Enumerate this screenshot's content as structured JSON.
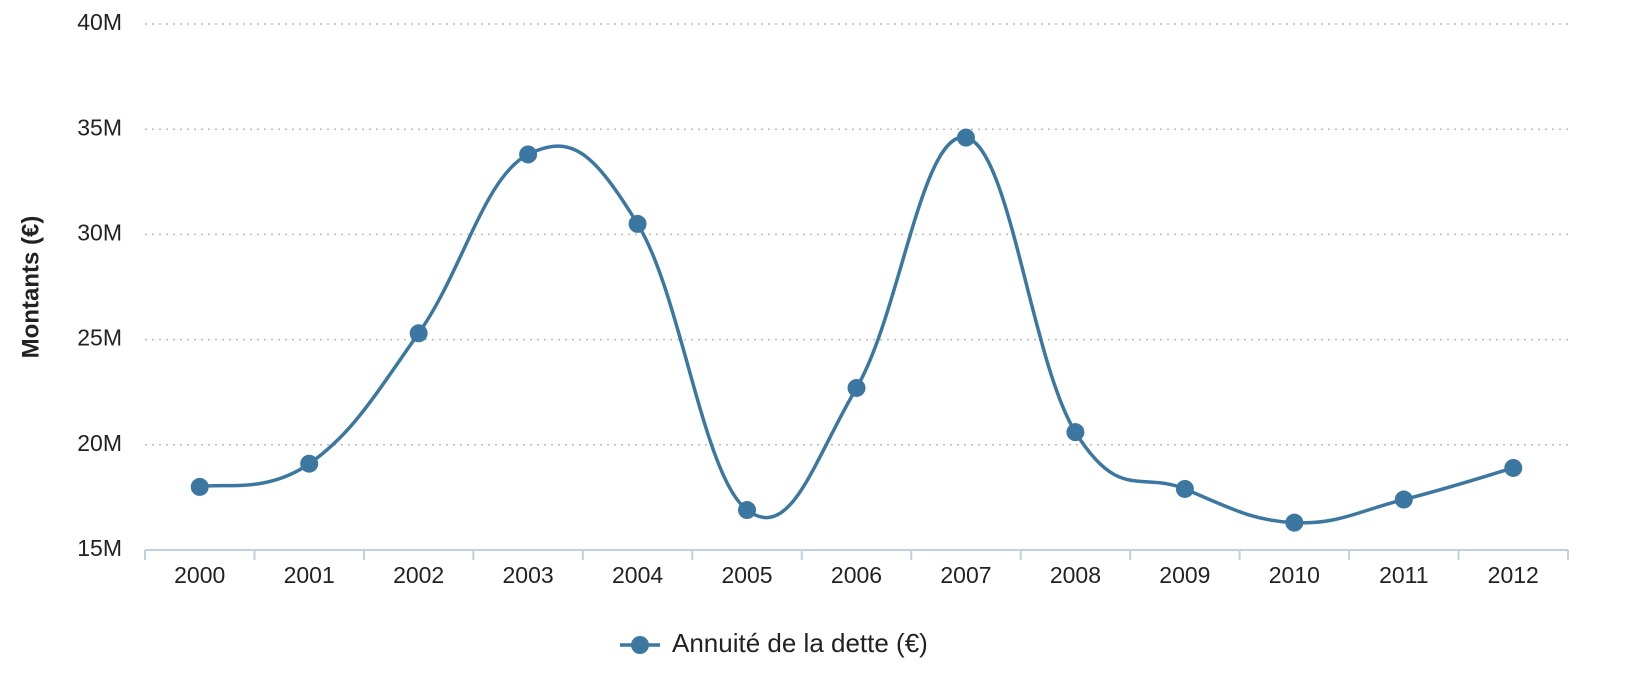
{
  "chart_data": {
    "type": "line",
    "y_label": "Montants (€)",
    "categories": [
      "2000",
      "2001",
      "2002",
      "2003",
      "2004",
      "2005",
      "2006",
      "2007",
      "2008",
      "2009",
      "2010",
      "2011",
      "2012"
    ],
    "series": [
      {
        "name": "Annuité de la dette (€)",
        "color": "#3b77a0",
        "values": [
          18000000,
          19100000,
          25300000,
          33800000,
          30500000,
          16900000,
          22700000,
          34600000,
          20600000,
          17900000,
          16300000,
          17400000,
          18900000
        ]
      }
    ],
    "ylim": [
      15000000,
      40000000
    ],
    "yticks": [
      {
        "value": 15000000,
        "label": "15M"
      },
      {
        "value": 20000000,
        "label": "20M"
      },
      {
        "value": 25000000,
        "label": "25M"
      },
      {
        "value": 30000000,
        "label": "30M"
      },
      {
        "value": 35000000,
        "label": "35M"
      },
      {
        "value": 40000000,
        "label": "40M"
      }
    ],
    "grid": true,
    "legend": "bottom"
  }
}
